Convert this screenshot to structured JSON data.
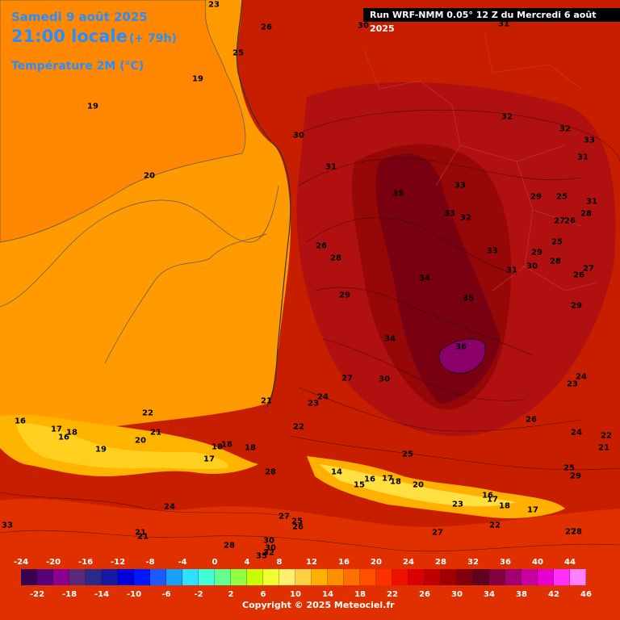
{
  "header": {
    "date": "Samedi 9 août 2025",
    "time": "21:00 locale",
    "lead": "(+ 79h)",
    "variable": "Température 2M (°C)"
  },
  "run_info": "Run WRF-NMM 0.05° 12 Z du Mercredi 6 août 2025",
  "copyright": "Copyright © 2025 Meteociel.fr",
  "map_labels": [
    "23",
    "26",
    "30",
    "31",
    "25",
    "19",
    "19",
    "20",
    "30",
    "31",
    "32",
    "32",
    "33",
    "31",
    "35",
    "33",
    "33",
    "32",
    "29",
    "25",
    "31",
    "27",
    "26",
    "28",
    "26",
    "28",
    "33",
    "25",
    "29",
    "31",
    "30",
    "28",
    "27",
    "26",
    "34",
    "35",
    "29",
    "29",
    "34",
    "36",
    "27",
    "30",
    "24",
    "23",
    "21",
    "23",
    "24",
    "22",
    "26",
    "25",
    "22",
    "21",
    "24",
    "16",
    "17",
    "16",
    "18",
    "22",
    "21",
    "20",
    "19",
    "18",
    "18",
    "17",
    "18",
    "25",
    "28",
    "29",
    "14",
    "15",
    "16",
    "17",
    "18",
    "20",
    "23",
    "16",
    "17",
    "18",
    "17",
    "28",
    "24",
    "21",
    "21",
    "27",
    "25",
    "26",
    "27",
    "22",
    "27",
    "28",
    "30",
    "30",
    "32",
    "35",
    "33"
  ],
  "legend": {
    "top_ticks": [
      "-24",
      "-20",
      "-16",
      "-12",
      "-8",
      "-4",
      "0",
      "4",
      "8",
      "12",
      "16",
      "20",
      "24",
      "28",
      "32",
      "36",
      "40",
      "44"
    ],
    "bottom_ticks": [
      "-22",
      "-18",
      "-14",
      "-10",
      "-6",
      "-2",
      "2",
      "6",
      "10",
      "14",
      "18",
      "22",
      "26",
      "30",
      "34",
      "38",
      "42",
      "46"
    ],
    "colors": [
      "#3a0050",
      "#5a0078",
      "#8c0090",
      "#5a2a7a",
      "#2a2a8a",
      "#1818a8",
      "#0000d8",
      "#0018ff",
      "#1a5aff",
      "#1aa0ff",
      "#30e0ff",
      "#40ffd8",
      "#60ff90",
      "#90ff40",
      "#c8ff00",
      "#f0ff30",
      "#fff070",
      "#ffd040",
      "#ffb000",
      "#ff9000",
      "#ff7000",
      "#ff5000",
      "#ff3000",
      "#f01000",
      "#d80000",
      "#c00000",
      "#a00000",
      "#800010",
      "#600020",
      "#800040",
      "#a00070",
      "#c800a0",
      "#e800d0",
      "#ff30ff",
      "#ff80ff"
    ]
  },
  "colors": {
    "sea": "#ff9a00",
    "sea_deep": "#ff8400",
    "land": "#c81e00",
    "hot": "#9a0808",
    "hottest": "#700014",
    "peak": "#900070",
    "mountain": "#ffc800",
    "header_text": "#2a8cff"
  }
}
